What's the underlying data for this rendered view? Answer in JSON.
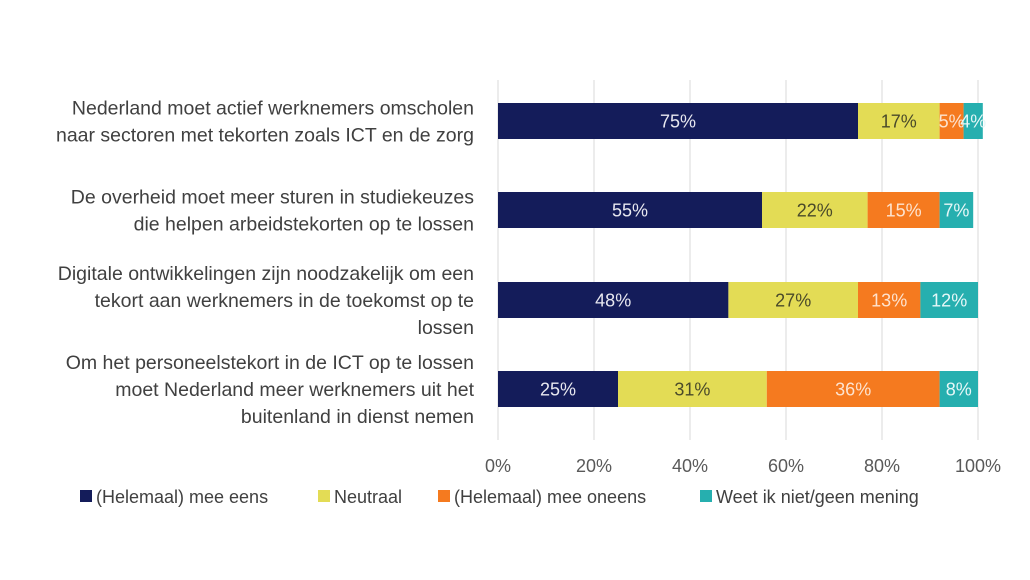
{
  "chart_data": {
    "type": "bar",
    "orientation": "horizontal",
    "stacked": "percent",
    "title": "",
    "xlabel": "",
    "ylabel": "",
    "xlim": [
      0,
      100
    ],
    "x_ticks": [
      "0%",
      "20%",
      "40%",
      "60%",
      "80%",
      "100%"
    ],
    "grid": true,
    "legend_position": "bottom",
    "categories": [
      [
        "Nederland moet actief werknemers omscholen",
        "naar sectoren met tekorten zoals ICT en de zorg"
      ],
      [
        "De overheid moet meer sturen in studiekeuzes",
        "die helpen arbeidstekorten op te lossen"
      ],
      [
        "Digitale ontwikkelingen zijn noodzakelijk om een",
        "tekort aan werknemers in de toekomst op te",
        "lossen"
      ],
      [
        "Om het personeelstekort in de ICT op te lossen",
        "moet Nederland meer werknemers uit het",
        "buitenland in dienst nemen"
      ]
    ],
    "series": [
      {
        "name": "(Helemaal) mee eens",
        "color": "#141C5A",
        "label_color": "#E8E8F0",
        "values": [
          75,
          55,
          48,
          25
        ]
      },
      {
        "name": "Neutraal",
        "color": "#E3DC55",
        "label_color": "#4A4A2A",
        "values": [
          17,
          22,
          27,
          31
        ]
      },
      {
        "name": "(Helemaal) mee oneens",
        "color": "#F57A1F",
        "label_color": "#FDE3CF",
        "values": [
          5,
          15,
          13,
          36
        ]
      },
      {
        "name": "Weet ik niet/geen mening",
        "color": "#26AFAF",
        "label_color": "#E6F7F7",
        "values": [
          4,
          7,
          12,
          8
        ]
      }
    ]
  }
}
